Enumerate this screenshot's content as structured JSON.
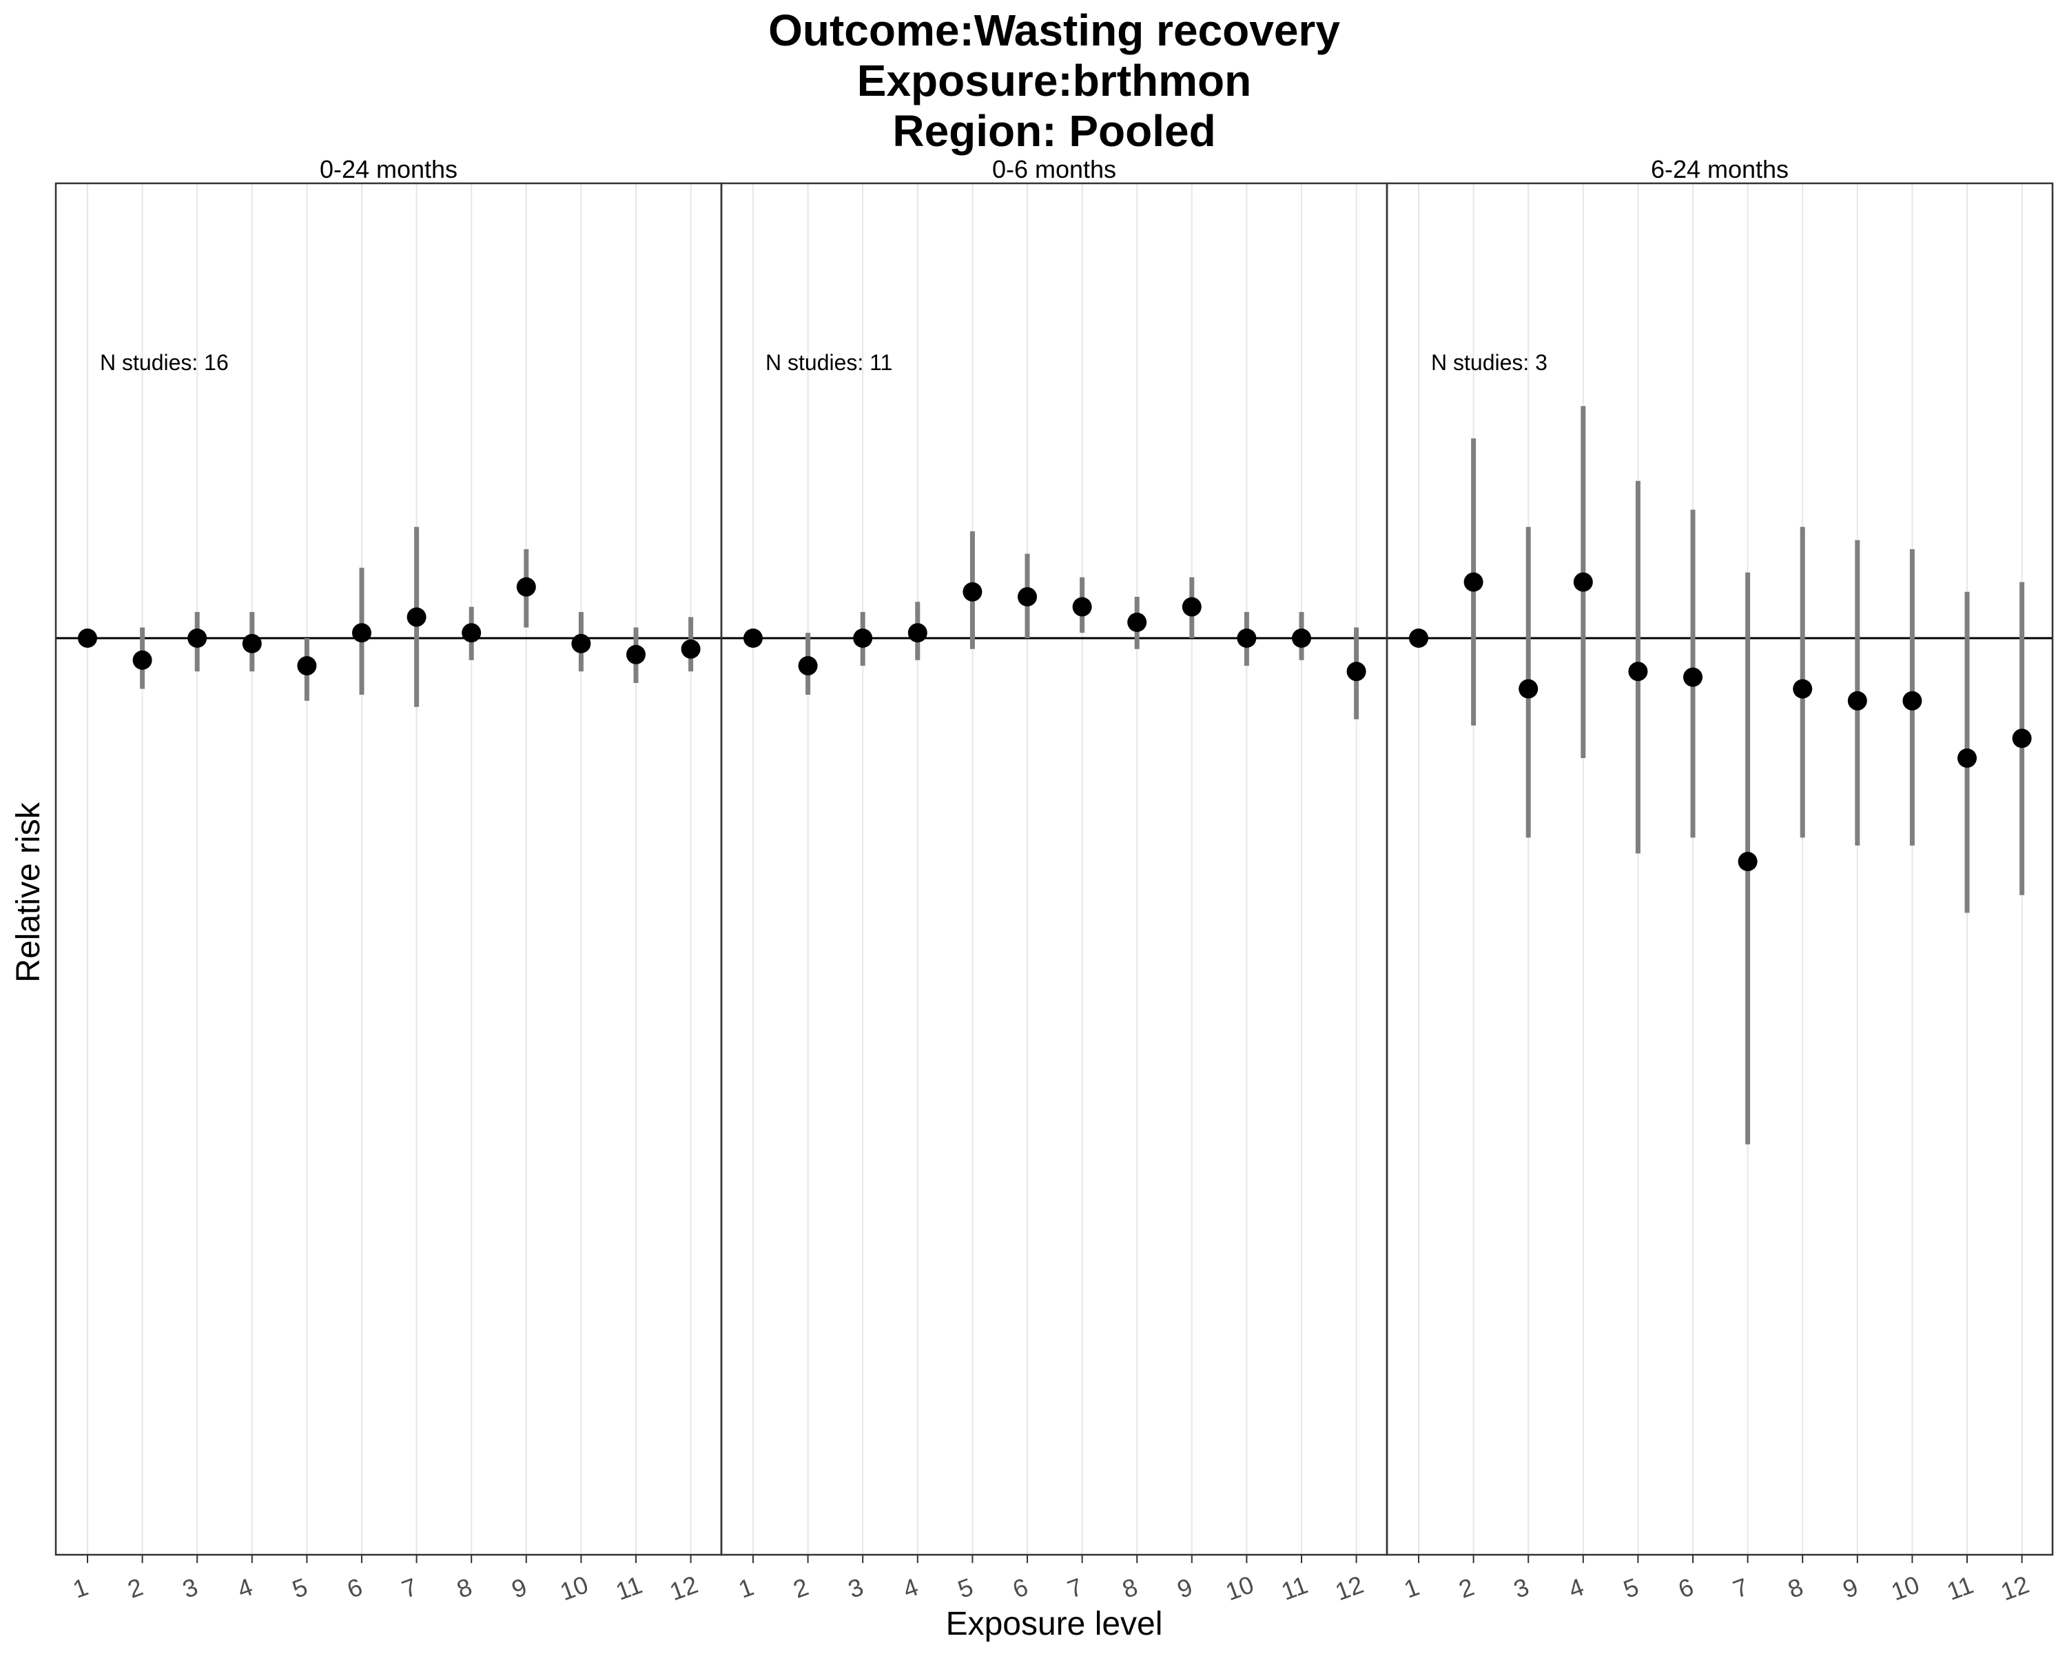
{
  "chart_data": {
    "type": "scatter",
    "subtype": "point-range (forest) plot, faceted",
    "title_lines": [
      "Outcome:Wasting recovery",
      "Exposure:brthmon",
      "Region: Pooled"
    ],
    "xlabel": "Exposure level",
    "ylabel": "Relative risk",
    "y_tick_labels_shown": false,
    "reference_line_y": 1.0,
    "ylim": [
      0.37,
      2.0
    ],
    "grid": "vertical major gridlines only",
    "colors": {
      "point": "#000000",
      "interval": "#7f7f7f",
      "grid": "#e6e6e6",
      "reference_line": "#000000"
    },
    "x_categories": [
      "1",
      "2",
      "3",
      "4",
      "5",
      "6",
      "7",
      "8",
      "9",
      "10",
      "11",
      "12"
    ],
    "facets": [
      {
        "label": "0-24 months",
        "annotation": "N studies: 16",
        "points": [
          {
            "x": "1",
            "rr": 1.0
          },
          {
            "x": "2",
            "rr": 0.96,
            "lo": 0.91,
            "hi": 1.02
          },
          {
            "x": "3",
            "rr": 1.0,
            "lo": 0.94,
            "hi": 1.05
          },
          {
            "x": "4",
            "rr": 0.99,
            "lo": 0.94,
            "hi": 1.05
          },
          {
            "x": "5",
            "rr": 0.95,
            "lo": 0.89,
            "hi": 1.0
          },
          {
            "x": "6",
            "rr": 1.01,
            "lo": 0.9,
            "hi": 1.14
          },
          {
            "x": "7",
            "rr": 1.04,
            "lo": 0.88,
            "hi": 1.23
          },
          {
            "x": "8",
            "rr": 1.01,
            "lo": 0.96,
            "hi": 1.06
          },
          {
            "x": "9",
            "rr": 1.1,
            "lo": 1.02,
            "hi": 1.18
          },
          {
            "x": "10",
            "rr": 0.99,
            "lo": 0.94,
            "hi": 1.05
          },
          {
            "x": "11",
            "rr": 0.97,
            "lo": 0.92,
            "hi": 1.02
          },
          {
            "x": "12",
            "rr": 0.98,
            "lo": 0.94,
            "hi": 1.04
          }
        ]
      },
      {
        "label": "0-6 months",
        "annotation": "N studies: 11",
        "points": [
          {
            "x": "1",
            "rr": 1.0
          },
          {
            "x": "2",
            "rr": 0.95,
            "lo": 0.9,
            "hi": 1.01
          },
          {
            "x": "3",
            "rr": 1.0,
            "lo": 0.95,
            "hi": 1.05
          },
          {
            "x": "4",
            "rr": 1.01,
            "lo": 0.96,
            "hi": 1.07
          },
          {
            "x": "5",
            "rr": 1.09,
            "lo": 0.98,
            "hi": 1.22
          },
          {
            "x": "6",
            "rr": 1.08,
            "lo": 1.0,
            "hi": 1.17
          },
          {
            "x": "7",
            "rr": 1.06,
            "lo": 1.01,
            "hi": 1.12
          },
          {
            "x": "8",
            "rr": 1.03,
            "lo": 0.98,
            "hi": 1.08
          },
          {
            "x": "9",
            "rr": 1.06,
            "lo": 1.0,
            "hi": 1.12
          },
          {
            "x": "10",
            "rr": 1.0,
            "lo": 0.95,
            "hi": 1.05
          },
          {
            "x": "11",
            "rr": 1.0,
            "lo": 0.96,
            "hi": 1.05
          },
          {
            "x": "12",
            "rr": 0.94,
            "lo": 0.86,
            "hi": 1.02
          }
        ]
      },
      {
        "label": "6-24 months",
        "annotation": "N studies: 3",
        "points": [
          {
            "x": "1",
            "rr": 1.0
          },
          {
            "x": "2",
            "rr": 1.11,
            "lo": 0.85,
            "hi": 1.45
          },
          {
            "x": "3",
            "rr": 0.91,
            "lo": 0.69,
            "hi": 1.23
          },
          {
            "x": "4",
            "rr": 1.11,
            "lo": 0.8,
            "hi": 1.54
          },
          {
            "x": "5",
            "rr": 0.94,
            "lo": 0.67,
            "hi": 1.34
          },
          {
            "x": "6",
            "rr": 0.93,
            "lo": 0.69,
            "hi": 1.27
          },
          {
            "x": "7",
            "rr": 0.66,
            "lo": 0.39,
            "hi": 1.13
          },
          {
            "x": "8",
            "rr": 0.91,
            "lo": 0.69,
            "hi": 1.23
          },
          {
            "x": "9",
            "rr": 0.89,
            "lo": 0.68,
            "hi": 1.2
          },
          {
            "x": "10",
            "rr": 0.89,
            "lo": 0.68,
            "hi": 1.18
          },
          {
            "x": "11",
            "rr": 0.8,
            "lo": 0.6,
            "hi": 1.09
          },
          {
            "x": "12",
            "rr": 0.83,
            "lo": 0.62,
            "hi": 1.11
          }
        ]
      }
    ]
  }
}
